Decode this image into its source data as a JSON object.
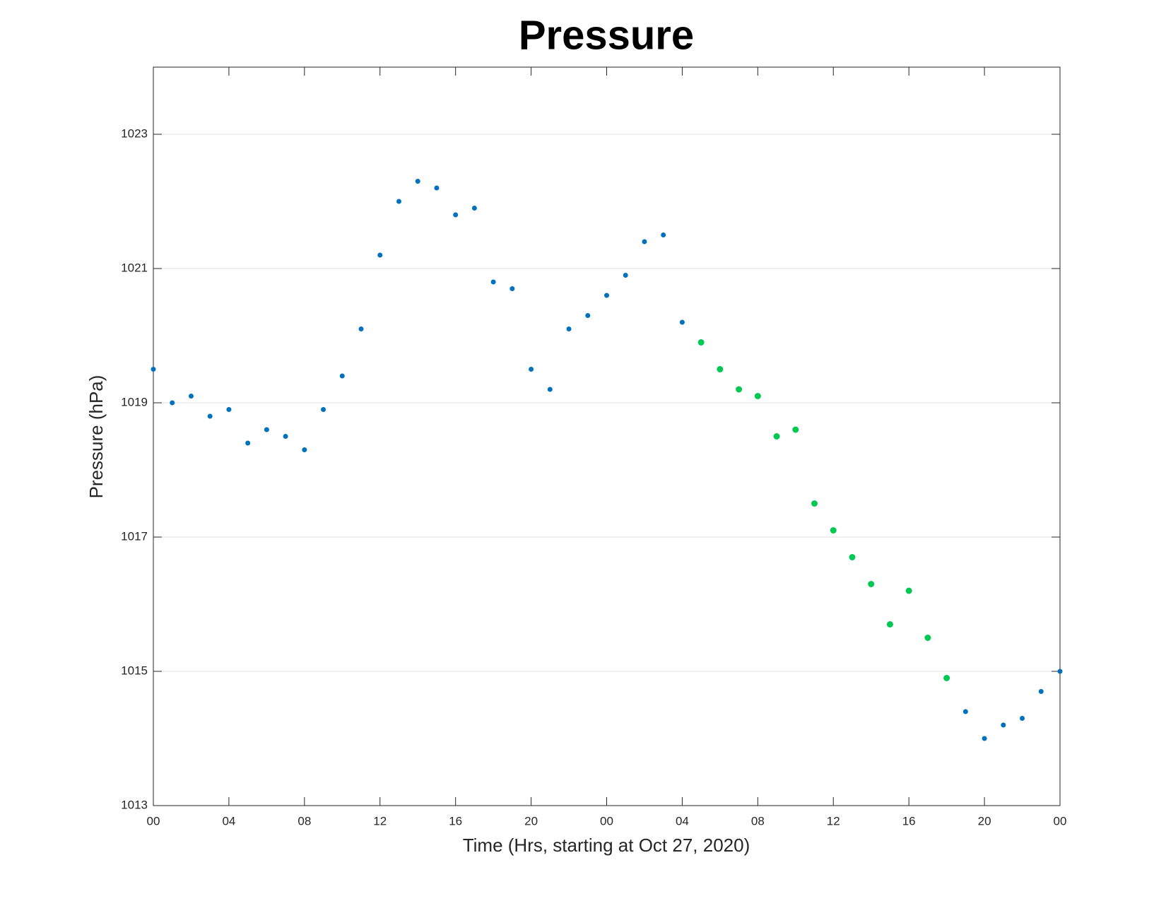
{
  "chart_data": {
    "type": "scatter",
    "title": "Pressure",
    "x_label": "Time (Hrs, starting at Oct 27, 2020)",
    "y_label": "Pressure (hPa)",
    "series": [
      {
        "color": "#0072bd",
        "x": [
          0,
          1,
          2,
          3,
          4,
          5,
          6,
          7,
          8,
          9,
          10,
          11,
          12,
          13,
          14,
          15,
          16,
          17,
          18,
          19,
          20,
          21,
          22,
          23,
          24,
          25,
          26,
          27,
          28,
          43,
          44,
          45,
          46,
          47,
          48
        ],
        "values": [
          1019.5,
          1019.0,
          1019.1,
          1018.8,
          1018.9,
          1018.4,
          1018.6,
          1018.5,
          1018.3,
          1018.9,
          1019.4,
          1020.1,
          1021.2,
          1022.0,
          1022.3,
          1022.2,
          1021.8,
          1021.9,
          1020.8,
          1020.7,
          1019.5,
          1019.2,
          1020.1,
          1020.3,
          1020.6,
          1020.9,
          1021.4,
          1021.5,
          1020.2,
          1014.4,
          1014.0,
          1014.2,
          1014.3,
          1014.7,
          1015.0
        ]
      },
      {
        "color": "#00c853",
        "x": [
          29,
          30,
          31,
          32,
          33,
          34,
          35,
          36,
          37,
          38,
          39,
          40,
          41,
          42
        ],
        "values": [
          1019.9,
          1019.5,
          1019.2,
          1019.1,
          1018.5,
          1018.6,
          1017.5,
          1017.1,
          1016.7,
          1016.3,
          1015.7,
          1016.2,
          1015.5,
          1014.9
        ]
      }
    ],
    "xlim": [
      0,
      48
    ],
    "xticks": [
      {
        "value": 0,
        "label": "00"
      },
      {
        "value": 4,
        "label": "04"
      },
      {
        "value": 8,
        "label": "08"
      },
      {
        "value": 12,
        "label": "12"
      },
      {
        "value": 16,
        "label": "16"
      },
      {
        "value": 20,
        "label": "20"
      },
      {
        "value": 24,
        "label": "00"
      },
      {
        "value": 28,
        "label": "04"
      },
      {
        "value": 32,
        "label": "08"
      },
      {
        "value": 36,
        "label": "12"
      },
      {
        "value": 40,
        "label": "16"
      },
      {
        "value": 44,
        "label": "20"
      },
      {
        "value": 48,
        "label": "00"
      }
    ],
    "ylim": [
      1013,
      1024
    ],
    "yticks": [
      1013,
      1015,
      1017,
      1019,
      1021,
      1023
    ],
    "grid": true
  }
}
